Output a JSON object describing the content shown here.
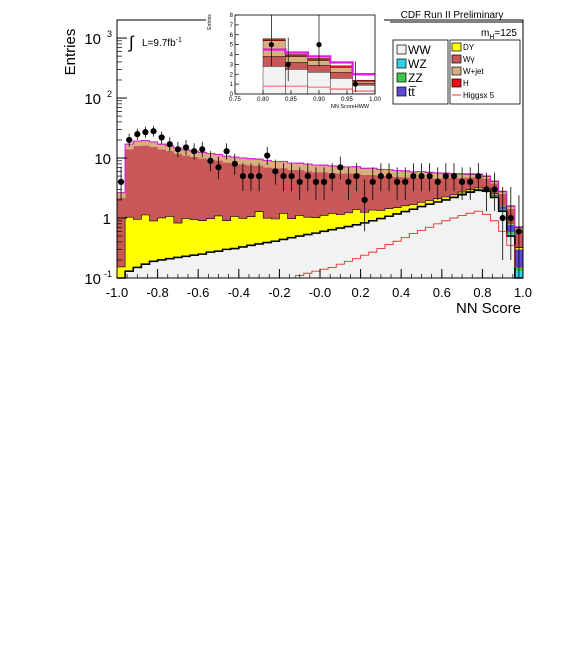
{
  "header": {
    "title": "CDF Run II Preliminary",
    "lumi_prefix": "L=9.7fb",
    "lumi_sup": "-1",
    "mass_label": "m",
    "mass_sub": "H",
    "mass_value": "=125"
  },
  "legend": {
    "left": [
      {
        "label": "WW",
        "color": "#f2f2f2"
      },
      {
        "label": "WZ",
        "color": "#2fd2e8"
      },
      {
        "label": "ZZ",
        "color": "#3bc84a"
      },
      {
        "label": "tt̅",
        "color": "#5a49d4"
      }
    ],
    "right": [
      {
        "label": "DY",
        "color": "#ffff00"
      },
      {
        "label": "Wγ",
        "color": "#c85858"
      },
      {
        "label": "W+jet",
        "color": "#d8b080"
      },
      {
        "label": "H",
        "color": "#e81010"
      },
      {
        "label": "Higgsx 5",
        "color": "#e83030",
        "style": "line"
      }
    ]
  },
  "colors": {
    "ww": "#f2f2f2",
    "wz": "#2fd2e8",
    "zz": "#3bc84a",
    "tt": "#5a49d4",
    "dy": "#ffff00",
    "wg": "#c85858",
    "wjet": "#d8b080",
    "h": "#e81010",
    "higgs5": "#e83030",
    "total_line": "#e020e0",
    "ww_line": "#000000"
  },
  "chart_data": [
    {
      "type": "area",
      "title": "",
      "xlabel": "NN Score",
      "ylabel": "Entries",
      "xlim": [
        -1.0,
        1.0
      ],
      "ylim": [
        0.1,
        2000
      ],
      "yscale": "log",
      "x_ticks": [
        "-1.0",
        "-0.8",
        "-0.6",
        "-0.4",
        "-0.2",
        "-0.0",
        "0.2",
        "0.4",
        "0.6",
        "0.8",
        "1.0"
      ],
      "y_ticks": [
        {
          "base": "10",
          "exp": "-1"
        },
        {
          "base": "1",
          "exp": ""
        },
        {
          "base": "10",
          "exp": ""
        },
        {
          "base": "10",
          "exp": "2"
        },
        {
          "base": "10",
          "exp": "3"
        }
      ],
      "bin_width": 0.04,
      "bin_start": -1.0,
      "stacked_series": [
        {
          "name": "WW",
          "values": [
            0.1,
            0.13,
            0.15,
            0.17,
            0.19,
            0.2,
            0.21,
            0.22,
            0.23,
            0.24,
            0.25,
            0.27,
            0.28,
            0.3,
            0.31,
            0.33,
            0.35,
            0.37,
            0.39,
            0.41,
            0.44,
            0.47,
            0.5,
            0.53,
            0.56,
            0.6,
            0.64,
            0.68,
            0.72,
            0.77,
            0.83,
            0.9,
            0.98,
            1.07,
            1.17,
            1.28,
            1.4,
            1.55,
            1.7,
            1.85,
            2.0,
            2.2,
            2.45,
            2.7,
            2.9,
            2.8,
            2.2,
            1.3,
            0.5,
            0.1
          ]
        },
        {
          "name": "WZ",
          "values": [
            0.001,
            0.001,
            0.001,
            0.001,
            0.001,
            0.001,
            0.001,
            0.001,
            0.001,
            0.001,
            0.001,
            0.001,
            0.001,
            0.001,
            0.001,
            0.001,
            0.001,
            0.001,
            0.001,
            0.001,
            0.001,
            0.001,
            0.001,
            0.001,
            0.001,
            0.001,
            0.001,
            0.001,
            0.001,
            0.001,
            0.002,
            0.002,
            0.003,
            0.004,
            0.005,
            0.006,
            0.008,
            0.01,
            0.012,
            0.015,
            0.02,
            0.025,
            0.03,
            0.04,
            0.05,
            0.06,
            0.07,
            0.05,
            0.04,
            0.03
          ]
        },
        {
          "name": "ZZ",
          "values": [
            0.001,
            0.001,
            0.001,
            0.001,
            0.001,
            0.001,
            0.001,
            0.001,
            0.001,
            0.001,
            0.001,
            0.001,
            0.001,
            0.001,
            0.001,
            0.001,
            0.001,
            0.001,
            0.001,
            0.001,
            0.001,
            0.001,
            0.001,
            0.001,
            0.001,
            0.001,
            0.001,
            0.001,
            0.001,
            0.001,
            0.002,
            0.002,
            0.003,
            0.004,
            0.005,
            0.006,
            0.008,
            0.01,
            0.012,
            0.015,
            0.02,
            0.025,
            0.03,
            0.04,
            0.05,
            0.06,
            0.06,
            0.05,
            0.04,
            0.02
          ]
        },
        {
          "name": "tt̅",
          "values": [
            0.001,
            0.001,
            0.001,
            0.001,
            0.001,
            0.001,
            0.001,
            0.001,
            0.001,
            0.001,
            0.001,
            0.001,
            0.001,
            0.001,
            0.001,
            0.001,
            0.001,
            0.001,
            0.001,
            0.001,
            0.001,
            0.001,
            0.001,
            0.001,
            0.001,
            0.001,
            0.001,
            0.001,
            0.001,
            0.001,
            0.002,
            0.002,
            0.003,
            0.004,
            0.005,
            0.006,
            0.008,
            0.01,
            0.015,
            0.02,
            0.03,
            0.04,
            0.05,
            0.07,
            0.09,
            0.12,
            0.15,
            0.18,
            0.2,
            0.15
          ]
        },
        {
          "name": "DY",
          "values": [
            0.05,
            0.9,
            0.8,
            0.95,
            0.7,
            0.8,
            0.85,
            0.6,
            0.75,
            0.7,
            0.65,
            0.7,
            0.8,
            0.6,
            0.75,
            0.65,
            0.7,
            0.9,
            0.6,
            0.55,
            0.75,
            0.5,
            0.6,
            0.5,
            0.45,
            0.5,
            0.55,
            0.45,
            0.5,
            0.6,
            0.4,
            0.45,
            0.35,
            0.35,
            0.3,
            0.3,
            0.25,
            0.25,
            0.2,
            0.2,
            0.18,
            0.15,
            0.15,
            0.12,
            0.12,
            0.1,
            0.08,
            0.06,
            0.04,
            0.02
          ]
        },
        {
          "name": "Wγ",
          "values": [
            2.0,
            13.0,
            15.0,
            15.0,
            14.5,
            13.0,
            12.0,
            11.0,
            10.0,
            9.5,
            9.0,
            8.5,
            8.0,
            7.5,
            7.0,
            6.8,
            6.5,
            6.2,
            6.0,
            5.8,
            5.6,
            5.4,
            5.2,
            5.0,
            4.8,
            4.7,
            4.5,
            4.4,
            4.3,
            4.2,
            4.0,
            3.9,
            3.7,
            3.6,
            3.4,
            3.2,
            3.0,
            2.9,
            2.7,
            2.5,
            2.4,
            2.2,
            2.0,
            1.8,
            1.6,
            1.4,
            1.2,
            0.9,
            0.6,
            0.3
          ]
        },
        {
          "name": "W+jet",
          "values": [
            0.5,
            3.0,
            3.2,
            3.4,
            3.2,
            3.0,
            2.9,
            2.8,
            2.7,
            2.6,
            2.5,
            2.4,
            2.4,
            2.3,
            2.3,
            2.2,
            2.2,
            2.1,
            2.1,
            2.0,
            2.0,
            1.9,
            1.9,
            1.9,
            1.8,
            1.8,
            1.7,
            1.7,
            1.6,
            1.6,
            1.5,
            1.5,
            1.4,
            1.4,
            1.3,
            1.3,
            1.2,
            1.2,
            1.1,
            1.0,
            0.9,
            0.8,
            0.7,
            0.6,
            0.5,
            0.4,
            0.3,
            0.2,
            0.15,
            0.08
          ]
        },
        {
          "name": "H",
          "values": [
            0.001,
            0.001,
            0.001,
            0.001,
            0.001,
            0.001,
            0.001,
            0.001,
            0.001,
            0.001,
            0.001,
            0.001,
            0.001,
            0.001,
            0.001,
            0.001,
            0.001,
            0.001,
            0.001,
            0.001,
            0.002,
            0.002,
            0.003,
            0.003,
            0.004,
            0.005,
            0.006,
            0.007,
            0.008,
            0.01,
            0.012,
            0.014,
            0.016,
            0.02,
            0.025,
            0.03,
            0.035,
            0.04,
            0.05,
            0.06,
            0.07,
            0.08,
            0.09,
            0.1,
            0.11,
            0.1,
            0.08,
            0.05,
            0.03,
            0.015
          ]
        }
      ],
      "overlay_series": [
        {
          "name": "Higgsx 5",
          "values": [
            0.1,
            0.1,
            0.1,
            0.1,
            0.1,
            0.1,
            0.1,
            0.1,
            0.1,
            0.1,
            0.1,
            0.1,
            0.1,
            0.1,
            0.1,
            0.1,
            0.1,
            0.1,
            0.1,
            0.1,
            0.1,
            0.1,
            0.11,
            0.12,
            0.13,
            0.14,
            0.15,
            0.17,
            0.19,
            0.21,
            0.24,
            0.27,
            0.31,
            0.36,
            0.41,
            0.47,
            0.55,
            0.62,
            0.7,
            0.8,
            0.9,
            1.0,
            1.1,
            1.2,
            1.3,
            1.15,
            0.9,
            0.6,
            0.35,
            0.15
          ]
        }
      ],
      "data_points": {
        "x": [
          -0.98,
          -0.94,
          -0.9,
          -0.86,
          -0.82,
          -0.78,
          -0.74,
          -0.7,
          -0.66,
          -0.62,
          -0.58,
          -0.54,
          -0.5,
          -0.46,
          -0.42,
          -0.38,
          -0.34,
          -0.3,
          -0.26,
          -0.22,
          -0.18,
          -0.14,
          -0.1,
          -0.06,
          -0.02,
          0.02,
          0.06,
          0.1,
          0.14,
          0.18,
          0.22,
          0.26,
          0.3,
          0.34,
          0.38,
          0.42,
          0.46,
          0.5,
          0.54,
          0.58,
          0.62,
          0.66,
          0.7,
          0.74,
          0.78,
          0.82,
          0.86,
          0.9,
          0.94,
          0.98
        ],
        "y": [
          4,
          20,
          25,
          27,
          28,
          22,
          17,
          14,
          15,
          13,
          14,
          9,
          7,
          13,
          8,
          5,
          5,
          5,
          11,
          6,
          5,
          5,
          4,
          5,
          4,
          4,
          5,
          7,
          4,
          5,
          2,
          4,
          5,
          5,
          4,
          4,
          5,
          5,
          5,
          4,
          5,
          5,
          4,
          4,
          5,
          3,
          3,
          1,
          1,
          0.6
        ],
        "err_lo": [
          2,
          4.5,
          5,
          5.2,
          5.3,
          4.7,
          4.1,
          3.7,
          3.9,
          3.6,
          3.7,
          3,
          2.6,
          3.6,
          2.8,
          2.2,
          2.2,
          2.2,
          3.3,
          2.4,
          2.2,
          2.2,
          2,
          2.2,
          2,
          2,
          2.2,
          2.6,
          2,
          2.2,
          1.4,
          2,
          2.2,
          2.2,
          2,
          2,
          2.2,
          2.2,
          2.2,
          2,
          2.2,
          2.2,
          2,
          2,
          2.2,
          1.7,
          1.7,
          0.8,
          0.8,
          0.5
        ],
        "err_hi": [
          3,
          5.5,
          6,
          6.2,
          6.3,
          5.7,
          5.1,
          4.7,
          4.9,
          4.6,
          4.7,
          4,
          3.6,
          4.6,
          3.8,
          3.2,
          3.2,
          3.2,
          4.3,
          3.4,
          3.2,
          3.2,
          3,
          3.2,
          3,
          3,
          3.2,
          3.6,
          3,
          3.2,
          2.4,
          3,
          3.2,
          3.2,
          3,
          3,
          3.2,
          3.2,
          3.2,
          3,
          3.2,
          3.2,
          3,
          3,
          3.2,
          2.7,
          2.7,
          2.3,
          2.3,
          1.8
        ]
      }
    },
    {
      "type": "area",
      "title": "",
      "xlabel": "NN ScoreHWW",
      "ylabel": "Entries",
      "xlim": [
        0.75,
        1.0
      ],
      "ylim": [
        0,
        8
      ],
      "yscale": "linear",
      "x_ticks": [
        "0.75",
        "0.80",
        "0.85",
        "0.90",
        "0.95",
        "1.00"
      ],
      "y_ticks": [
        "0",
        "1",
        "2",
        "3",
        "4",
        "5",
        "6",
        "7",
        "8"
      ],
      "bin_edges": [
        0.8,
        0.84,
        0.88,
        0.92,
        0.96,
        1.0
      ],
      "stacked_series": [
        {
          "name": "WW",
          "values": [
            2.8,
            2.5,
            2.2,
            1.6,
            0.9
          ]
        },
        {
          "name": "Wγ",
          "values": [
            1.0,
            0.7,
            0.7,
            0.6,
            0.2
          ]
        },
        {
          "name": "W+jet",
          "values": [
            1.6,
            0.6,
            0.5,
            0.5,
            0.2
          ]
        },
        {
          "name": "H",
          "values": [
            0.2,
            0.2,
            0.2,
            0.15,
            0.1
          ]
        }
      ],
      "overlay_series": [
        {
          "name": "Higgsx 5",
          "values": [
            0.8,
            0.8,
            0.7,
            0.5,
            0.3
          ]
        },
        {
          "name": "Total",
          "values": [
            4.5,
            4.2,
            3.8,
            3.2,
            2.0
          ]
        }
      ],
      "data_points": {
        "x": [
          0.815,
          0.845,
          0.9,
          0.965
        ],
        "y": [
          5,
          3,
          5,
          1
        ],
        "err_lo": [
          2.2,
          1.7,
          2.2,
          0.8
        ],
        "err_hi": [
          3.2,
          2.7,
          3.2,
          2.3
        ]
      }
    }
  ]
}
